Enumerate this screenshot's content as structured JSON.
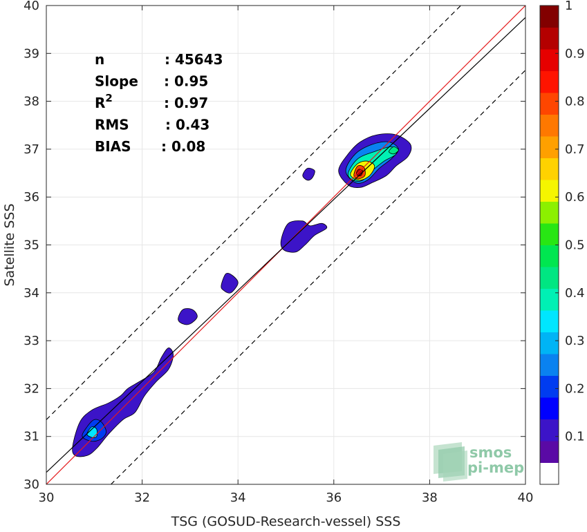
{
  "chart_data": {
    "type": "heatmap",
    "title": "",
    "xlabel": "TSG (GOSUD-Research-vessel) SSS",
    "ylabel": "Satellite SSS",
    "xlim": [
      30,
      40
    ],
    "ylim": [
      30,
      40
    ],
    "x_ticks": [
      30,
      32,
      34,
      36,
      38,
      40
    ],
    "y_ticks": [
      30,
      31,
      32,
      33,
      34,
      35,
      36,
      37,
      38,
      39,
      40
    ],
    "grid": true,
    "stats": [
      {
        "label": "n",
        "value": ": 45643"
      },
      {
        "label": "Slope",
        "value": ": 0.95"
      },
      {
        "label": "R",
        "sup": "2",
        "value": ": 0.97"
      },
      {
        "label": "RMS",
        "value": ": 0.43"
      },
      {
        "label": "BIAS",
        "value": ": 0.08"
      }
    ],
    "lines": [
      {
        "name": "identity",
        "color": "#e41a1c",
        "style": "solid",
        "x": [
          30,
          40
        ],
        "y": [
          30,
          40
        ]
      },
      {
        "name": "regression",
        "color": "#000000",
        "style": "solid",
        "x": [
          30,
          40
        ],
        "y": [
          30.25,
          39.75
        ]
      },
      {
        "name": "upper-bound",
        "color": "#000000",
        "style": "dashed",
        "x": [
          30,
          40
        ],
        "y": [
          31.35,
          41.35
        ]
      },
      {
        "name": "lower-bound",
        "color": "#000000",
        "style": "dashed",
        "x": [
          30,
          40
        ],
        "y": [
          28.65,
          38.65
        ]
      }
    ],
    "density_blobs": [
      {
        "points": [
          [
            30.55,
            30.8
          ],
          [
            30.7,
            31.3
          ],
          [
            30.95,
            31.55
          ],
          [
            31.3,
            31.7
          ],
          [
            31.55,
            31.85
          ],
          [
            31.7,
            32.0
          ],
          [
            31.95,
            32.15
          ],
          [
            32.25,
            32.35
          ],
          [
            32.4,
            32.65
          ],
          [
            32.55,
            32.85
          ],
          [
            32.65,
            32.7
          ],
          [
            32.55,
            32.4
          ],
          [
            32.3,
            32.15
          ],
          [
            32.05,
            31.85
          ],
          [
            31.85,
            31.5
          ],
          [
            31.6,
            31.35
          ],
          [
            31.3,
            31.05
          ],
          [
            31.05,
            30.75
          ],
          [
            30.85,
            30.6
          ],
          [
            30.6,
            30.6
          ]
        ],
        "level": 0.1
      },
      {
        "points": [
          [
            30.75,
            31.0
          ],
          [
            30.85,
            31.2
          ],
          [
            31.0,
            31.35
          ],
          [
            31.15,
            31.3
          ],
          [
            31.25,
            31.1
          ],
          [
            31.15,
            30.95
          ],
          [
            30.95,
            30.9
          ]
        ],
        "level": 0.2
      },
      {
        "points": [
          [
            30.85,
            31.05
          ],
          [
            30.95,
            31.2
          ],
          [
            31.05,
            31.15
          ],
          [
            31.05,
            31.0
          ],
          [
            30.95,
            30.98
          ]
        ],
        "level": 0.35
      },
      {
        "points": [
          [
            32.75,
            33.45
          ],
          [
            32.85,
            33.65
          ],
          [
            33.05,
            33.65
          ],
          [
            33.15,
            33.5
          ],
          [
            33.0,
            33.35
          ],
          [
            32.85,
            33.35
          ]
        ],
        "level": 0.1
      },
      {
        "points": [
          [
            33.65,
            34.15
          ],
          [
            33.75,
            34.4
          ],
          [
            33.9,
            34.35
          ],
          [
            34.0,
            34.2
          ],
          [
            33.85,
            34.0
          ],
          [
            33.7,
            34.05
          ]
        ],
        "level": 0.1
      },
      {
        "points": [
          [
            34.9,
            35.1
          ],
          [
            35.05,
            35.45
          ],
          [
            35.35,
            35.5
          ],
          [
            35.5,
            35.4
          ],
          [
            35.75,
            35.45
          ],
          [
            35.85,
            35.35
          ],
          [
            35.6,
            35.2
          ],
          [
            35.4,
            35.0
          ],
          [
            35.2,
            34.85
          ],
          [
            34.95,
            34.9
          ]
        ],
        "level": 0.1
      },
      {
        "points": [
          [
            35.35,
            36.45
          ],
          [
            35.45,
            36.6
          ],
          [
            35.6,
            36.55
          ],
          [
            35.55,
            36.4
          ],
          [
            35.45,
            36.35
          ]
        ],
        "level": 0.1
      },
      {
        "points": [
          [
            36.1,
            36.55
          ],
          [
            36.3,
            36.9
          ],
          [
            36.55,
            37.15
          ],
          [
            36.9,
            37.3
          ],
          [
            37.3,
            37.3
          ],
          [
            37.6,
            37.1
          ],
          [
            37.55,
            36.85
          ],
          [
            37.3,
            36.65
          ],
          [
            37.1,
            36.45
          ],
          [
            36.8,
            36.3
          ],
          [
            36.55,
            36.2
          ],
          [
            36.3,
            36.25
          ]
        ],
        "level": 0.1
      },
      {
        "points": [
          [
            36.25,
            36.55
          ],
          [
            36.45,
            36.9
          ],
          [
            36.8,
            37.1
          ],
          [
            37.15,
            37.15
          ],
          [
            37.35,
            37.0
          ],
          [
            37.2,
            36.8
          ],
          [
            36.95,
            36.6
          ],
          [
            36.7,
            36.35
          ],
          [
            36.45,
            36.3
          ]
        ],
        "level": 0.25
      },
      {
        "points": [
          [
            36.3,
            36.5
          ],
          [
            36.5,
            36.8
          ],
          [
            36.85,
            36.95
          ],
          [
            37.2,
            37.05
          ],
          [
            37.3,
            36.9
          ],
          [
            37.05,
            36.75
          ],
          [
            36.8,
            36.55
          ],
          [
            36.6,
            36.35
          ],
          [
            36.4,
            36.35
          ]
        ],
        "level": 0.4
      },
      {
        "points": [
          [
            36.35,
            36.5
          ],
          [
            36.5,
            36.7
          ],
          [
            36.7,
            36.75
          ],
          [
            36.85,
            36.65
          ],
          [
            36.75,
            36.45
          ],
          [
            36.55,
            36.35
          ],
          [
            36.4,
            36.4
          ]
        ],
        "level": 0.6
      },
      {
        "points": [
          [
            37.15,
            36.95
          ],
          [
            37.25,
            37.05
          ],
          [
            37.35,
            36.98
          ],
          [
            37.25,
            36.9
          ]
        ],
        "level": 0.45
      },
      {
        "points": [
          [
            36.42,
            36.48
          ],
          [
            36.5,
            36.65
          ],
          [
            36.63,
            36.62
          ],
          [
            36.65,
            36.45
          ],
          [
            36.53,
            36.38
          ],
          [
            36.45,
            36.4
          ]
        ],
        "level": 0.8
      },
      {
        "points": [
          [
            36.47,
            36.5
          ],
          [
            36.52,
            36.58
          ],
          [
            36.6,
            36.55
          ],
          [
            36.57,
            36.45
          ],
          [
            36.5,
            36.45
          ]
        ],
        "level": 0.95
      }
    ],
    "colorbar": {
      "min": 0,
      "max": 1,
      "ticks": [
        0.1,
        0.2,
        0.3,
        0.4,
        0.5,
        0.6,
        0.7,
        0.8,
        0.9,
        1
      ],
      "tick_labels": [
        "0.1",
        "0.2",
        "0.3",
        "0.4",
        "0.5",
        "0.6",
        "0.7",
        "0.8",
        "0.9",
        "1"
      ],
      "bins": [
        "#ffffff",
        "#5a0aa5",
        "#3c14c8",
        "#0000ff",
        "#003cf0",
        "#0a82f0",
        "#00b4f5",
        "#00e6ff",
        "#00f0b4",
        "#00e682",
        "#00e650",
        "#28e614",
        "#8cf000",
        "#f5f500",
        "#ffd200",
        "#ffa000",
        "#ff7800",
        "#ff4600",
        "#ff1400",
        "#e60000",
        "#b40000",
        "#820000"
      ]
    },
    "logo": {
      "line1": "smos",
      "line2": "pi-mep"
    }
  }
}
